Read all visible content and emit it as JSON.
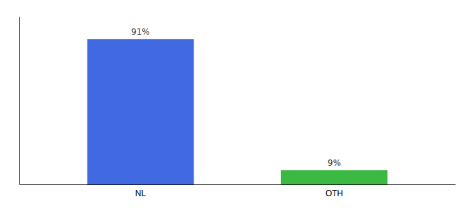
{
  "chart_data": {
    "type": "bar",
    "categories": [
      "NL",
      "OTH"
    ],
    "values": [
      91,
      9
    ],
    "value_labels": [
      "91%",
      "9%"
    ],
    "colors": [
      "#4169e1",
      "#3cb943"
    ],
    "ylim": [
      0,
      105
    ],
    "data_labels": true,
    "tick_labels": "x"
  }
}
